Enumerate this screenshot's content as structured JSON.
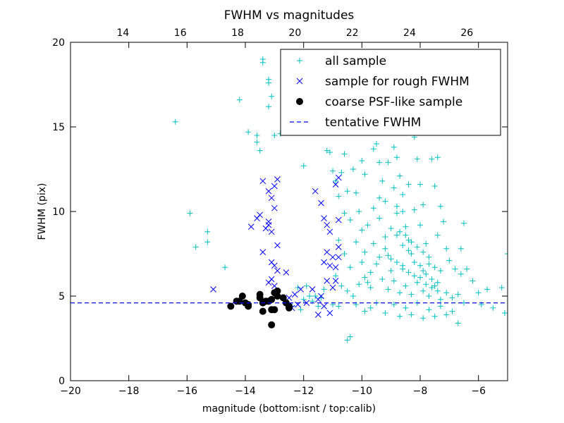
{
  "chart_data": {
    "type": "scatter",
    "title": "FWHM vs magnitudes",
    "xlabel": "magnitude (bottom:isnt / top:calib)",
    "ylabel": "FWHM (pix)",
    "xlim": [
      -20,
      -5
    ],
    "ylim": [
      0,
      20
    ],
    "top_xlim": [
      12.17,
      27.42
    ],
    "x_ticks": [
      "−20",
      "−18",
      "−16",
      "−14",
      "−12",
      "−10",
      "−8",
      "−6"
    ],
    "x_tick_values": [
      -20,
      -18,
      -16,
      -14,
      -12,
      -10,
      -8,
      -6
    ],
    "y_ticks": [
      "0",
      "5",
      "10",
      "15",
      "20"
    ],
    "y_tick_values": [
      0,
      5,
      10,
      15,
      20
    ],
    "top_ticks": [
      "14",
      "16",
      "18",
      "20",
      "22",
      "24",
      "26"
    ],
    "top_tick_values": [
      14,
      16,
      18,
      20,
      22,
      24,
      26
    ],
    "grid": false,
    "legend_position": "top-right",
    "colors": {
      "all_sample": "#00bfbf",
      "rough_sample": "#0000ff",
      "psf_sample": "#000000",
      "tentative": "#0000ff"
    },
    "series": [
      {
        "name": "all sample",
        "marker": "plus",
        "color": "#00bfbf",
        "points": [
          [
            -16.4,
            15.3
          ],
          [
            -15.9,
            9.9
          ],
          [
            -15.7,
            7.9
          ],
          [
            -15.3,
            8.8
          ],
          [
            -15.3,
            8.2
          ],
          [
            -14.7,
            6.7
          ],
          [
            -14.2,
            16.6
          ],
          [
            -13.9,
            14.7
          ],
          [
            -13.6,
            14.5
          ],
          [
            -13.5,
            13.6
          ],
          [
            -13.4,
            18.8
          ],
          [
            -13.4,
            19.0
          ],
          [
            -13.2,
            17.8
          ],
          [
            -13.2,
            17.6
          ],
          [
            -13.1,
            16.8
          ],
          [
            -13.2,
            16.2
          ],
          [
            -13.0,
            14.5
          ],
          [
            -13.6,
            14.1
          ],
          [
            -12.8,
            14.6
          ],
          [
            -12.0,
            12.7
          ],
          [
            -12.2,
            5.5
          ],
          [
            -11.8,
            5.0
          ],
          [
            -11.6,
            5.0
          ],
          [
            -11.4,
            4.9
          ],
          [
            -11.2,
            13.6
          ],
          [
            -11.1,
            13.5
          ],
          [
            -11.0,
            12.4
          ],
          [
            -10.9,
            11.8
          ],
          [
            -10.8,
            10.9
          ],
          [
            -10.6,
            13.4
          ],
          [
            -10.7,
            12.3
          ],
          [
            -10.5,
            11.2
          ],
          [
            -10.6,
            9.9
          ],
          [
            -10.8,
            8.3
          ],
          [
            -10.6,
            7.5
          ],
          [
            -10.4,
            6.7
          ],
          [
            -10.3,
            12.5
          ],
          [
            -10.2,
            11.1
          ],
          [
            -10.0,
            13.0
          ],
          [
            -9.9,
            12.2
          ],
          [
            -10.1,
            10.0
          ],
          [
            -10.0,
            8.9
          ],
          [
            -9.9,
            7.6
          ],
          [
            -9.7,
            6.4
          ],
          [
            -9.8,
            5.8
          ],
          [
            -9.6,
            13.7
          ],
          [
            -9.5,
            14.0
          ],
          [
            -9.4,
            12.9
          ],
          [
            -9.3,
            11.8
          ],
          [
            -9.2,
            10.6
          ],
          [
            -9.4,
            9.6
          ],
          [
            -9.2,
            8.5
          ],
          [
            -9.1,
            7.4
          ],
          [
            -9.0,
            6.5
          ],
          [
            -8.9,
            13.8
          ],
          [
            -8.8,
            13.2
          ],
          [
            -8.7,
            12.1
          ],
          [
            -8.6,
            11.0
          ],
          [
            -8.8,
            9.9
          ],
          [
            -8.5,
            9.1
          ],
          [
            -8.4,
            8.3
          ],
          [
            -8.3,
            7.5
          ],
          [
            -8.6,
            6.8
          ],
          [
            -8.2,
            14.4
          ],
          [
            -8.1,
            13.1
          ],
          [
            -8.0,
            11.6
          ],
          [
            -7.9,
            10.4
          ],
          [
            -8.0,
            9.2
          ],
          [
            -7.8,
            8.1
          ],
          [
            -7.7,
            7.3
          ],
          [
            -7.9,
            6.5
          ],
          [
            -7.6,
            13.1
          ],
          [
            -7.4,
            13.2
          ],
          [
            -7.5,
            11.5
          ],
          [
            -7.3,
            10.3
          ],
          [
            -7.2,
            9.4
          ],
          [
            -7.4,
            8.6
          ],
          [
            -7.1,
            7.8
          ],
          [
            -7.0,
            7.1
          ],
          [
            -6.8,
            6.6
          ],
          [
            -6.6,
            6.3
          ],
          [
            -6.5,
            9.3
          ],
          [
            -6.6,
            7.8
          ],
          [
            -6.4,
            6.6
          ],
          [
            -6.2,
            5.9
          ],
          [
            -6.0,
            5.2
          ],
          [
            -5.9,
            4.5
          ],
          [
            -5.7,
            5.4
          ],
          [
            -5.5,
            4.3
          ],
          [
            -5.2,
            5.5
          ],
          [
            -5.1,
            4.0
          ],
          [
            -5.0,
            7.5
          ],
          [
            -9.9,
            4.1
          ],
          [
            -9.7,
            4.3
          ],
          [
            -9.5,
            4.6
          ],
          [
            -9.2,
            4.0
          ],
          [
            -8.9,
            4.5
          ],
          [
            -8.7,
            3.8
          ],
          [
            -8.5,
            4.3
          ],
          [
            -8.3,
            3.9
          ],
          [
            -8.1,
            4.6
          ],
          [
            -7.9,
            3.7
          ],
          [
            -7.7,
            4.2
          ],
          [
            -7.5,
            3.8
          ],
          [
            -7.3,
            4.4
          ],
          [
            -7.1,
            3.9
          ],
          [
            -6.9,
            4.1
          ],
          [
            -6.7,
            3.4
          ],
          [
            -6.5,
            4.6
          ],
          [
            -10.4,
            2.6
          ],
          [
            -10.5,
            2.4
          ],
          [
            -10.2,
            4.5
          ],
          [
            -10.8,
            4.4
          ],
          [
            -11.0,
            4.5
          ],
          [
            -11.3,
            5.4
          ],
          [
            -12.0,
            4.8
          ],
          [
            -11.9,
            5.6
          ],
          [
            -10.9,
            6.2
          ],
          [
            -10.7,
            5.6
          ],
          [
            -10.5,
            5.3
          ],
          [
            -10.3,
            5.0
          ],
          [
            -10.1,
            5.7
          ],
          [
            -9.9,
            6.1
          ],
          [
            -9.7,
            5.5
          ],
          [
            -9.5,
            6.9
          ],
          [
            -9.3,
            6.0
          ],
          [
            -9.1,
            5.4
          ],
          [
            -8.9,
            5.9
          ],
          [
            -8.7,
            5.2
          ],
          [
            -8.5,
            5.6
          ],
          [
            -8.3,
            5.1
          ],
          [
            -8.1,
            5.8
          ],
          [
            -7.9,
            5.3
          ],
          [
            -7.7,
            5.0
          ],
          [
            -7.5,
            5.6
          ],
          [
            -7.3,
            4.8
          ],
          [
            -7.1,
            5.2
          ],
          [
            -6.9,
            4.9
          ],
          [
            -6.7,
            5.1
          ],
          [
            -9.0,
            9.0
          ],
          [
            -8.8,
            8.6
          ],
          [
            -8.6,
            8.0
          ],
          [
            -8.4,
            7.7
          ],
          [
            -8.2,
            7.0
          ],
          [
            -8.0,
            6.8
          ],
          [
            -7.8,
            6.3
          ],
          [
            -7.6,
            6.0
          ],
          [
            -7.4,
            5.8
          ],
          [
            -9.2,
            7.8
          ],
          [
            -9.0,
            7.2
          ],
          [
            -8.8,
            7.0
          ],
          [
            -8.6,
            6.6
          ],
          [
            -8.4,
            6.4
          ],
          [
            -8.2,
            6.2
          ],
          [
            -8.0,
            6.1
          ],
          [
            -7.8,
            5.7
          ],
          [
            -7.6,
            5.5
          ],
          [
            -7.4,
            5.3
          ],
          [
            -8.7,
            8.8
          ],
          [
            -8.5,
            8.6
          ],
          [
            -8.3,
            8.2
          ],
          [
            -8.1,
            7.9
          ],
          [
            -7.9,
            7.6
          ],
          [
            -7.7,
            6.9
          ],
          [
            -7.5,
            6.7
          ],
          [
            -7.3,
            6.5
          ],
          [
            -9.6,
            8.1
          ],
          [
            -9.4,
            7.3
          ],
          [
            -9.8,
            9.2
          ],
          [
            -10.0,
            7.0
          ],
          [
            -10.2,
            8.2
          ],
          [
            -10.4,
            9.5
          ],
          [
            -9.6,
            10.2
          ],
          [
            -9.4,
            10.8
          ],
          [
            -8.8,
            10.3
          ],
          [
            -8.6,
            10.0
          ],
          [
            -8.9,
            11.4
          ],
          [
            -8.4,
            11.6
          ],
          [
            -8.2,
            10.1
          ],
          [
            -9.1,
            12.9
          ],
          [
            -12.4,
            4.4
          ],
          [
            -12.1,
            4.2
          ],
          [
            -11.7,
            4.7
          ],
          [
            -11.5,
            4.4
          ]
        ]
      },
      {
        "name": "sample for rough FWHM",
        "marker": "x",
        "color": "#0000ff",
        "points": [
          [
            -15.1,
            5.4
          ],
          [
            -13.8,
            9.1
          ],
          [
            -13.6,
            9.6
          ],
          [
            -13.5,
            9.8
          ],
          [
            -13.4,
            11.8
          ],
          [
            -13.2,
            11.2
          ],
          [
            -13.1,
            10.8
          ],
          [
            -13.0,
            11.5
          ],
          [
            -12.9,
            11.9
          ],
          [
            -13.0,
            10.2
          ],
          [
            -13.2,
            9.4
          ],
          [
            -13.3,
            9.0
          ],
          [
            -13.4,
            7.6
          ],
          [
            -13.1,
            7.0
          ],
          [
            -13.0,
            6.8
          ],
          [
            -12.9,
            6.5
          ],
          [
            -13.1,
            6.0
          ],
          [
            -13.2,
            5.8
          ],
          [
            -13.0,
            5.6
          ],
          [
            -12.9,
            8.0
          ],
          [
            -13.1,
            8.8
          ],
          [
            -13.2,
            9.2
          ],
          [
            -12.6,
            6.4
          ],
          [
            -12.5,
            4.9
          ],
          [
            -12.4,
            4.3
          ],
          [
            -12.2,
            4.5
          ],
          [
            -12.1,
            5.4
          ],
          [
            -11.9,
            4.6
          ],
          [
            -11.7,
            5.4
          ],
          [
            -11.5,
            4.8
          ],
          [
            -11.4,
            5.0
          ],
          [
            -11.6,
            11.2
          ],
          [
            -11.4,
            10.5
          ],
          [
            -11.3,
            9.6
          ],
          [
            -11.2,
            9.2
          ],
          [
            -11.1,
            8.8
          ],
          [
            -11.3,
            7.0
          ],
          [
            -11.1,
            6.8
          ],
          [
            -11.0,
            7.3
          ],
          [
            -10.9,
            6.7
          ],
          [
            -11.2,
            5.9
          ],
          [
            -11.0,
            5.5
          ],
          [
            -11.3,
            4.4
          ],
          [
            -11.1,
            4.0
          ],
          [
            -11.5,
            3.9
          ],
          [
            -10.8,
            7.9
          ],
          [
            -10.8,
            7.3
          ],
          [
            -10.8,
            9.5
          ],
          [
            -10.8,
            12.0
          ],
          [
            -10.9,
            11.6
          ],
          [
            -11.2,
            7.6
          ],
          [
            -10.9,
            5.9
          ],
          [
            -12.3,
            5.1
          ]
        ]
      },
      {
        "name": "coarse PSF-like sample",
        "marker": "circle",
        "color": "#000000",
        "points": [
          [
            -14.5,
            4.4
          ],
          [
            -14.3,
            4.7
          ],
          [
            -14.2,
            4.7
          ],
          [
            -14.1,
            5.0
          ],
          [
            -14.0,
            4.6
          ],
          [
            -13.9,
            4.5
          ],
          [
            -13.9,
            4.4
          ],
          [
            -13.5,
            5.1
          ],
          [
            -13.5,
            4.9
          ],
          [
            -13.4,
            4.6
          ],
          [
            -13.4,
            4.1
          ],
          [
            -13.3,
            4.7
          ],
          [
            -13.2,
            4.7
          ],
          [
            -13.1,
            4.8
          ],
          [
            -13.1,
            4.2
          ],
          [
            -13.1,
            3.3
          ],
          [
            -13.0,
            5.2
          ],
          [
            -13.0,
            4.2
          ],
          [
            -12.9,
            5.3
          ],
          [
            -12.9,
            5.0
          ],
          [
            -12.7,
            4.9
          ],
          [
            -12.6,
            4.6
          ],
          [
            -12.5,
            4.4
          ],
          [
            -12.5,
            4.3
          ]
        ]
      }
    ],
    "reference_lines": [
      {
        "name": "tentative FWHM",
        "style": "dashed",
        "color": "#0000ff",
        "y": 4.6
      }
    ],
    "legend": [
      {
        "label": "all sample",
        "marker": "plus",
        "color": "#00bfbf"
      },
      {
        "label": "sample for rough FWHM",
        "marker": "x",
        "color": "#0000ff"
      },
      {
        "label": "coarse PSF-like sample",
        "marker": "circle",
        "color": "#000000"
      },
      {
        "label": "tentative FWHM",
        "marker": "dashed-line",
        "color": "#0000ff"
      }
    ]
  }
}
